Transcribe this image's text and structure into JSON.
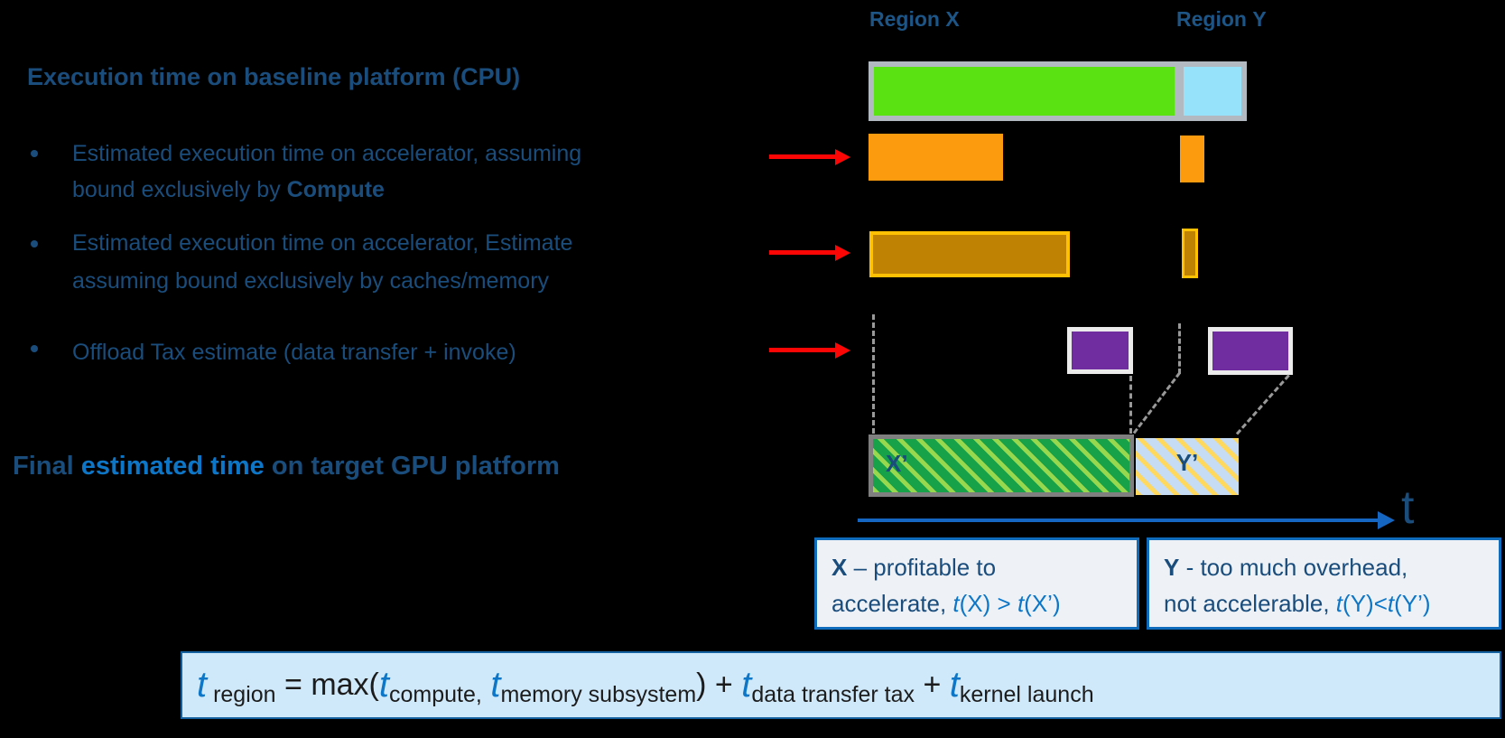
{
  "colors": {
    "navy": "#1a4d7c",
    "accent": "#0e76c6",
    "header_blue": "#1d5586",
    "axis_blue": "#1566c0",
    "red": "#fb0505",
    "bar_gray": "#b3b9c0",
    "green": "#5ae212",
    "light_blue": "#97e2fb",
    "orange": "#fb9b0d",
    "gold_border": "#ffc103",
    "gold_fill": "#bf8203",
    "purple": "#6f2da0",
    "purple_border": "#ebebeb",
    "dash_gray": "#999999",
    "xprime_green": "#17a24a",
    "xprime_stripe": "#98d84f",
    "xprime_border": "#7f7f7f",
    "yprime_blue": "#c6dcf4",
    "yprime_stripe": "#ffd85e",
    "box_bg": "#eef2f7",
    "box_border": "#0f6cbd",
    "formula_bg": "#cfe9fa",
    "formula_border": "#15609f"
  },
  "headers": {
    "region_x": [
      {
        "t": "Region "
      },
      {
        "t": "X",
        "b": 1
      }
    ],
    "region_y": [
      {
        "t": "Region "
      },
      {
        "t": "Y",
        "b": 1
      }
    ]
  },
  "left_column": {
    "baseline_title": "Execution time on baseline platform (CPU)",
    "bullet1_line1": [
      {
        "t": "Estimated execution time on accelerator, assuming"
      }
    ],
    "bullet1_line2": [
      {
        "t": "bound exclusively by "
      },
      {
        "t": "Compute",
        "b": 1
      }
    ],
    "bullet2_line1": [
      {
        "t": "Estimated execution time on accelerator, Estimate"
      }
    ],
    "bullet2_line2": [
      {
        "t": "assuming bound exclusively by caches/memory"
      }
    ],
    "bullet3_line1": [
      {
        "t": "Offload Tax estimate (data transfer + invoke)"
      }
    ],
    "final_title": [
      {
        "t": "Final ",
        "b": 1
      },
      {
        "t": "estimated time",
        "b": 1,
        "a": 1
      },
      {
        "t": " on target GPU platform",
        "b": 1
      }
    ]
  },
  "bars": {
    "final_x_label": "X’",
    "final_y_label": "Y’"
  },
  "axis": {
    "label": "t"
  },
  "callouts": {
    "x_line1": [
      {
        "t": "X",
        "b": 1
      },
      {
        "t": " – profitable to"
      }
    ],
    "x_line2": [
      {
        "t": "accelerate, "
      },
      {
        "t": "t",
        "i": 1,
        "a": 1
      },
      {
        "t": "(X) > ",
        "a": 1
      },
      {
        "t": "t",
        "i": 1,
        "a": 1
      },
      {
        "t": "(X’)",
        "a": 1
      }
    ],
    "y_line1": [
      {
        "t": "Y",
        "b": 1
      },
      {
        "t": " - too much overhead,"
      }
    ],
    "y_line2": [
      {
        "t": "not accelerable, "
      },
      {
        "t": "t",
        "i": 1,
        "a": 1
      },
      {
        "t": "(Y)<",
        "a": 1
      },
      {
        "t": "t",
        "i": 1,
        "a": 1
      },
      {
        "t": "(Y’)",
        "a": 1
      }
    ]
  },
  "formula": {
    "tokens": [
      {
        "k": "var",
        "v": "t"
      },
      {
        "k": "sub",
        "v": " region"
      },
      {
        "k": "op",
        "v": " = max("
      },
      {
        "k": "var",
        "v": "t"
      },
      {
        "k": "sub",
        "v": "compute,"
      },
      {
        "k": "op",
        "v": " "
      },
      {
        "k": "var",
        "v": "t"
      },
      {
        "k": "sub",
        "v": "memory subsystem"
      },
      {
        "k": "op",
        "v": ") + "
      },
      {
        "k": "var",
        "v": "t"
      },
      {
        "k": "sub",
        "v": "data transfer tax"
      },
      {
        "k": "op",
        "v": " + "
      },
      {
        "k": "var",
        "v": "t"
      },
      {
        "k": "sub",
        "v": "kernel launch"
      }
    ]
  }
}
